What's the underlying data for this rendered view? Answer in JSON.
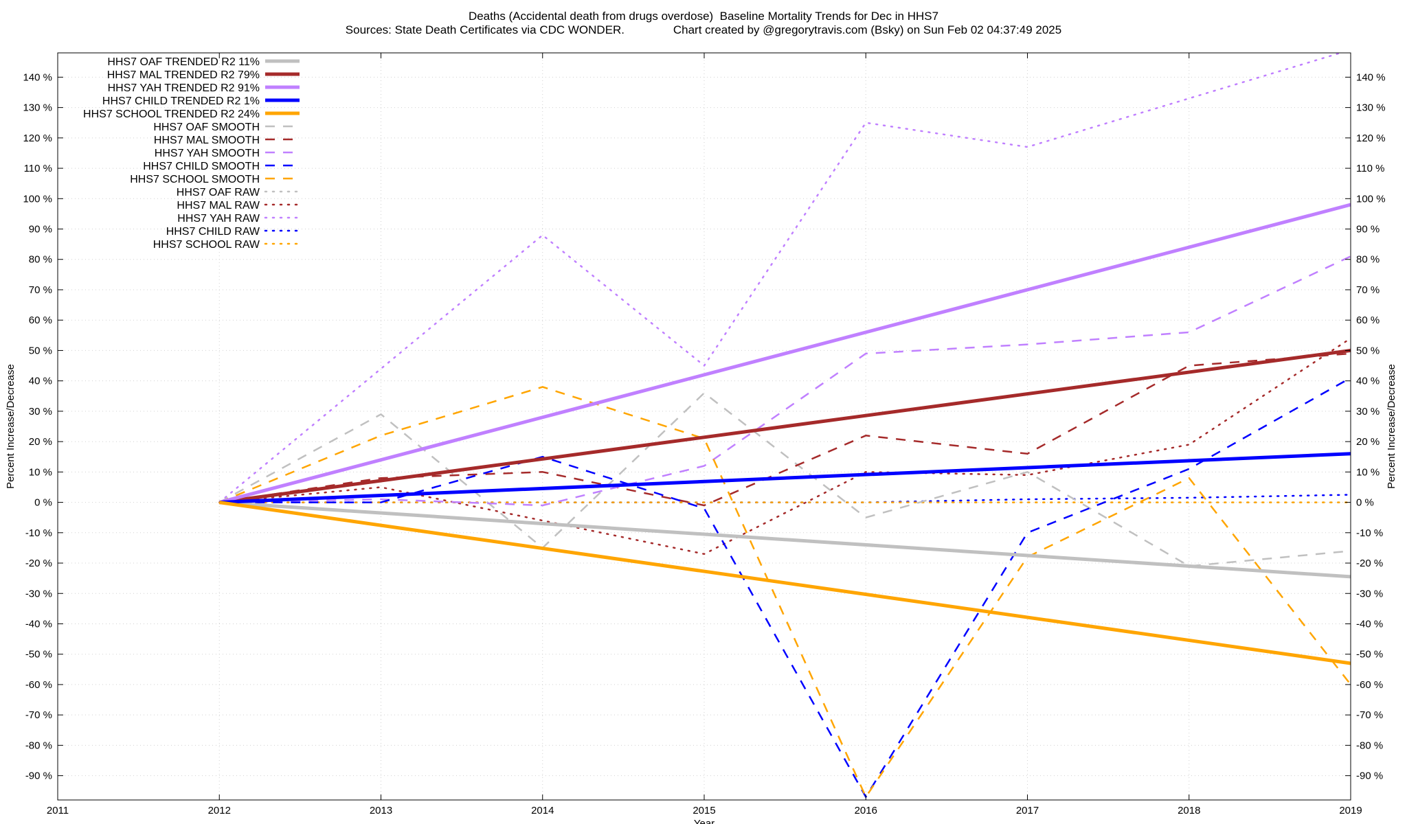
{
  "chart_data": {
    "type": "line",
    "title_line1": "Deaths (Accidental death from drugs overdose)  Baseline Mortality Trends for Dec in HHS7",
    "title_line2": "Sources: State Death Certificates via CDC WONDER.               Chart created by @gregorytravis.com (Bsky) on Sun Feb 02 04:37:49 2025",
    "xlabel": "Year",
    "ylabel_left": "Percent Increase/Decrease",
    "ylabel_right": "Percent Increase/Decrease",
    "xlim": [
      2011,
      2019
    ],
    "ylim": [
      -98,
      148
    ],
    "x_ticks": [
      2011,
      2012,
      2013,
      2014,
      2015,
      2016,
      2017,
      2018,
      2019
    ],
    "y_ticks_left": [
      "-90 %",
      "-80 %",
      "-70 %",
      "-60 %",
      "-50 %",
      "-40 %",
      "-30 %",
      "-20 %",
      "-10 %",
      "0 %",
      "10 %",
      "20 %",
      "30 %",
      "40 %",
      "50 %",
      "60 %",
      "70 %",
      "80 %",
      "90 %",
      "100 %",
      "110 %",
      "120 %",
      "130 %",
      "140 %"
    ],
    "y_ticks_right": [
      "-90 %",
      "-80 %",
      "-70 %",
      "-60 %",
      "-50 %",
      "-40 %",
      "-30 %",
      "-20 %",
      "-10 %",
      "0 %",
      "10 %",
      "20 %",
      "30 %",
      "40 %",
      "50 %",
      "60 %",
      "70 %",
      "80 %",
      "90 %",
      "100 %",
      "110 %",
      "120 %",
      "130 %",
      "140 %"
    ],
    "grid": true,
    "legend_position": "top-left",
    "series": [
      {
        "name": "HHS7 OAF TRENDED R2  11%",
        "style": "solid",
        "color": "#c0c0c0",
        "x": [
          2012,
          2019
        ],
        "y": [
          0,
          -24.5
        ]
      },
      {
        "name": "HHS7 MAL TRENDED R2  79%",
        "style": "solid",
        "color": "#a52a2a",
        "x": [
          2012,
          2019
        ],
        "y": [
          0,
          50
        ]
      },
      {
        "name": "HHS7 YAH TRENDED R2  91%",
        "style": "solid",
        "color": "#c080ff",
        "x": [
          2012,
          2019
        ],
        "y": [
          0,
          98
        ]
      },
      {
        "name": "HHS7 CHILD TRENDED R2   1%",
        "style": "solid",
        "color": "#0000ff",
        "x": [
          2012,
          2019
        ],
        "y": [
          0,
          16
        ]
      },
      {
        "name": "HHS7 SCHOOL TRENDED R2  24%",
        "style": "solid",
        "color": "#ffa500",
        "x": [
          2012,
          2019
        ],
        "y": [
          0,
          -53
        ]
      },
      {
        "name": "HHS7 OAF SMOOTH",
        "style": "dashed",
        "color": "#c0c0c0",
        "x": [
          2012,
          2013,
          2014,
          2015,
          2016,
          2017,
          2018,
          2019
        ],
        "y": [
          0,
          29,
          -15,
          36,
          -5,
          10,
          -21,
          -16
        ]
      },
      {
        "name": "HHS7 MAL SMOOTH",
        "style": "dashed",
        "color": "#a52a2a",
        "x": [
          2012,
          2013,
          2014,
          2015,
          2016,
          2017,
          2018,
          2019
        ],
        "y": [
          0,
          8,
          10,
          -1,
          22,
          16,
          45,
          49
        ]
      },
      {
        "name": "HHS7 YAH SMOOTH",
        "style": "dashed",
        "color": "#c080ff",
        "x": [
          2012,
          2013,
          2014,
          2015,
          2016,
          2017,
          2018,
          2019
        ],
        "y": [
          0,
          1,
          -1,
          12,
          49,
          52,
          56,
          81
        ]
      },
      {
        "name": "HHS7 CHILD SMOOTH",
        "style": "dashed",
        "color": "#0000ff",
        "x": [
          2012,
          2013,
          2014,
          2015,
          2016,
          2017,
          2018,
          2019
        ],
        "y": [
          0,
          0,
          15,
          -2,
          -97,
          -10,
          11,
          41
        ]
      },
      {
        "name": "HHS7 SCHOOL SMOOTH",
        "style": "dashed",
        "color": "#ffa500",
        "x": [
          2012,
          2013,
          2014,
          2015,
          2016,
          2017,
          2018,
          2019
        ],
        "y": [
          0,
          22,
          38,
          21,
          -97,
          -18,
          8,
          -60
        ]
      },
      {
        "name": "HHS7 OAF RAW",
        "style": "dotted",
        "color": "#c0c0c0",
        "x": [
          2012,
          2013,
          2014,
          2015,
          2016,
          2017,
          2018,
          2019
        ],
        "y": [
          0,
          0,
          0,
          0,
          0,
          0,
          0,
          0
        ]
      },
      {
        "name": "HHS7 MAL RAW",
        "style": "dotted",
        "color": "#a52a2a",
        "x": [
          2012,
          2013,
          2014,
          2015,
          2016,
          2017,
          2018,
          2019
        ],
        "y": [
          0,
          5,
          -6,
          -17,
          10,
          9,
          19,
          54
        ]
      },
      {
        "name": "HHS7 YAH RAW",
        "style": "dotted",
        "color": "#c080ff",
        "x": [
          2012,
          2013,
          2014,
          2015,
          2016,
          2017,
          2018,
          2019
        ],
        "y": [
          0,
          44,
          88,
          45,
          125,
          117,
          133,
          149
        ]
      },
      {
        "name": "HHS7 CHILD RAW",
        "style": "dotted",
        "color": "#0000ff",
        "x": [
          2012,
          2013,
          2014,
          2015,
          2016,
          2017,
          2018,
          2019
        ],
        "y": [
          0,
          0,
          0,
          0,
          0,
          1,
          1.5,
          2.5
        ]
      },
      {
        "name": "HHS7 SCHOOL RAW",
        "style": "dotted",
        "color": "#ffa500",
        "x": [
          2012,
          2013,
          2014,
          2015,
          2016,
          2017,
          2018,
          2019
        ],
        "y": [
          0,
          0,
          0,
          0,
          0,
          0,
          0,
          0
        ]
      }
    ]
  }
}
